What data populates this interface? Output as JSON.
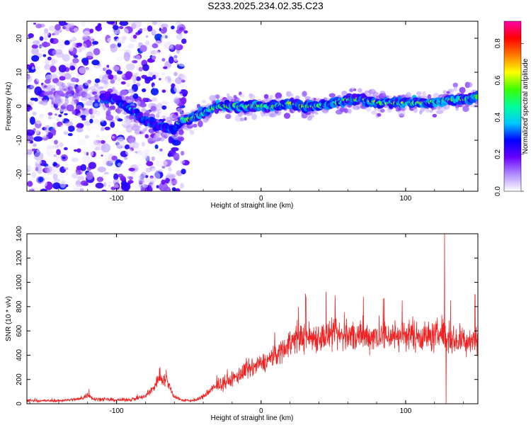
{
  "title": "S233.2025.234.02.35.C23",
  "chart_data": [
    {
      "type": "heatmap",
      "xlabel": "Height of straight line (km)",
      "ylabel": "Frequency (Hz)",
      "xlim": [
        -162,
        150
      ],
      "ylim": [
        -25,
        25
      ],
      "x_ticks": [
        -100,
        0,
        100
      ],
      "y_ticks": [
        -20,
        -10,
        0,
        10,
        20
      ],
      "colorbar": {
        "label": "Normalized spectral amplitude",
        "range": [
          0,
          0.92
        ],
        "ticks": [
          "0.0",
          "0.2",
          "0.4",
          "0.6",
          "0.8"
        ],
        "colormap": [
          "#ffffff",
          "#b08cff",
          "#6a00ff",
          "#0000ff",
          "#00c8ff",
          "#00ff9a",
          "#3cff00",
          "#ffff00",
          "#ff7a00",
          "#ff0000",
          "#ff00a8"
        ]
      },
      "ridge": {
        "x": [
          -162,
          -140,
          -120,
          -100,
          -90,
          -80,
          -70,
          -60,
          -55,
          -50,
          -40,
          -30,
          -20,
          -10,
          0,
          10,
          20,
          30,
          40,
          50,
          60,
          70,
          80,
          90,
          100,
          110,
          120,
          130,
          140,
          150
        ],
        "y": [
          5,
          4,
          3,
          2,
          -1,
          -4,
          -6,
          -7,
          -4,
          -4,
          -2,
          0,
          0,
          0,
          0,
          0,
          1,
          0,
          0,
          1,
          2,
          2,
          1,
          1,
          1,
          1,
          1,
          2,
          2,
          3
        ]
      }
    },
    {
      "type": "line",
      "xlabel": "Height of straight line (km)",
      "ylabel": "SNR (10 * v/v)",
      "xlim": [
        -162,
        150
      ],
      "ylim": [
        0,
        1400
      ],
      "x_ticks": [
        -100,
        0,
        100
      ],
      "y_ticks": [
        0,
        200,
        400,
        600,
        800,
        1000,
        1200,
        1400
      ],
      "color": "#ee2222",
      "envelope": {
        "x": [
          -162,
          -140,
          -125,
          -120,
          -115,
          -100,
          -90,
          -80,
          -75,
          -70,
          -65,
          -60,
          -55,
          -50,
          -45,
          -40,
          -35,
          -30,
          -25,
          -20,
          -15,
          -10,
          -5,
          0,
          5,
          10,
          15,
          20,
          25,
          30,
          40,
          50,
          60,
          70,
          80,
          90,
          100,
          110,
          120,
          125,
          130,
          140,
          150
        ],
        "y": [
          25,
          25,
          40,
          70,
          40,
          30,
          35,
          60,
          120,
          230,
          180,
          60,
          30,
          25,
          30,
          60,
          110,
          150,
          170,
          200,
          240,
          270,
          300,
          330,
          360,
          400,
          450,
          500,
          540,
          550,
          550,
          560,
          560,
          550,
          560,
          560,
          570,
          560,
          550,
          600,
          520,
          520,
          530
        ]
      },
      "spikes": [
        {
          "x": -119,
          "y": 120
        },
        {
          "x": -70,
          "y": 300
        },
        {
          "x": 31,
          "y": 880
        },
        {
          "x": 45,
          "y": 920
        },
        {
          "x": 127,
          "y": 1400
        },
        {
          "x": 128,
          "y": 0
        },
        {
          "x": 148,
          "y": 900
        }
      ]
    }
  ]
}
